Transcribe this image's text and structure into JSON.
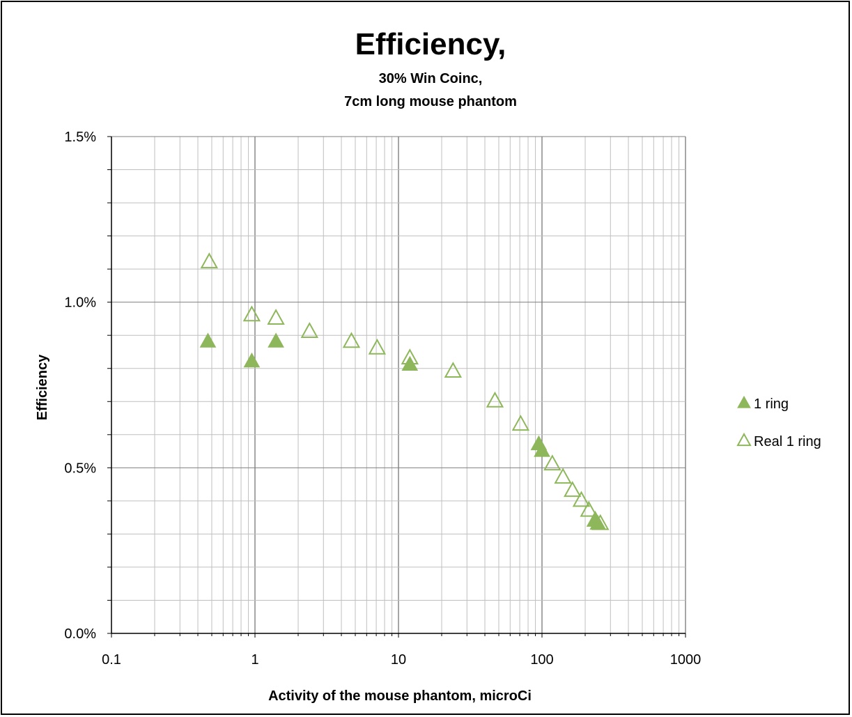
{
  "chart_data": {
    "type": "scatter",
    "title": "Efficiency,",
    "subtitle_lines": [
      "30% Win Coinc,",
      "7cm long mouse phantom"
    ],
    "xlabel": "Activity of the mouse phantom, microCi",
    "ylabel": "Efficiency",
    "x_scale": "log",
    "xlim": [
      0.1,
      1000
    ],
    "ylim": [
      0.0,
      0.015
    ],
    "x_ticks": [
      0.1,
      1,
      10,
      100,
      1000
    ],
    "x_tick_labels": [
      "0.1",
      "1",
      "10",
      "100",
      "1000"
    ],
    "y_ticks": [
      0.0,
      0.005,
      0.01,
      0.015
    ],
    "y_tick_labels": [
      "0.0%",
      "0.5%",
      "1.0%",
      "1.5%"
    ],
    "grid": true,
    "legend_position": "right",
    "series": [
      {
        "name": "1 ring",
        "marker": "filled-triangle",
        "color": "#8DB75A",
        "points": [
          [
            0.47,
            0.0088
          ],
          [
            0.95,
            0.0082
          ],
          [
            1.4,
            0.0088
          ],
          [
            12,
            0.0081
          ],
          [
            95,
            0.0057
          ],
          [
            100,
            0.0055
          ],
          [
            235,
            0.0034
          ],
          [
            245,
            0.0033
          ]
        ]
      },
      {
        "name": "Real 1 ring",
        "marker": "hollow-triangle",
        "color": "#8DB75A",
        "points": [
          [
            0.48,
            0.0112
          ],
          [
            0.95,
            0.0096
          ],
          [
            1.4,
            0.0095
          ],
          [
            2.4,
            0.0091
          ],
          [
            4.7,
            0.0088
          ],
          [
            7.1,
            0.0086
          ],
          [
            12,
            0.0083
          ],
          [
            24,
            0.0079
          ],
          [
            47,
            0.007
          ],
          [
            71,
            0.0063
          ],
          [
            118,
            0.0051
          ],
          [
            140,
            0.0047
          ],
          [
            163,
            0.0043
          ],
          [
            188,
            0.004
          ],
          [
            212,
            0.0037
          ],
          [
            235,
            0.0034
          ],
          [
            255,
            0.0033
          ]
        ]
      }
    ]
  }
}
